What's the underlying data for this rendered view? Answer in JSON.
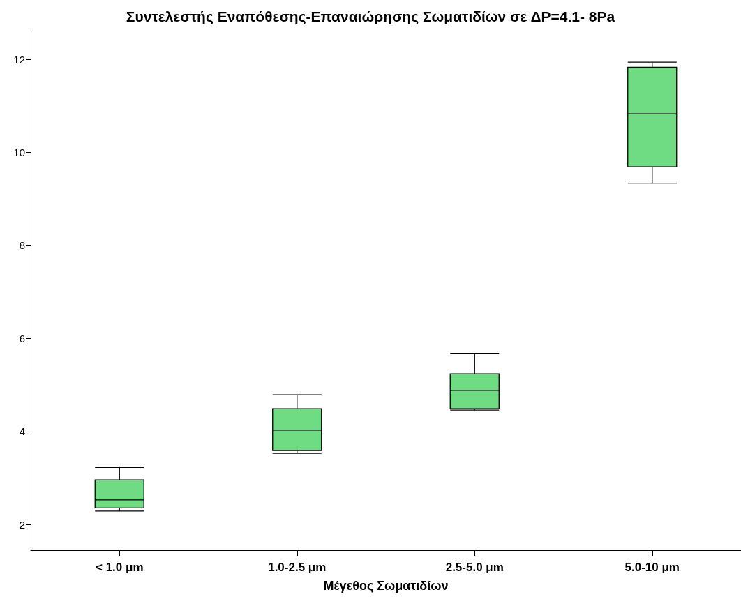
{
  "chart_data": {
    "type": "box",
    "title": "Συντελεστής Εναπόθεσης-Επαναιώρησης Σωματιδίων σε ΔP=4.1- 8Pa",
    "xlabel": "Μέγεθος Σωματιδίων",
    "categories": [
      "< 1.0 μm",
      "1.0-2.5 μm",
      "2.5-5.0 μm",
      "5.0-10 μm"
    ],
    "color": "#6fdc84",
    "boxes": [
      {
        "low": 2.29,
        "q1": 2.36,
        "median": 2.53,
        "q3": 2.96,
        "high": 3.23
      },
      {
        "low": 3.53,
        "q1": 3.59,
        "median": 4.03,
        "q3": 4.49,
        "high": 4.79
      },
      {
        "low": 4.46,
        "q1": 4.49,
        "median": 4.88,
        "q3": 5.24,
        "high": 5.68
      },
      {
        "low": 9.34,
        "q1": 9.69,
        "median": 10.83,
        "q3": 11.83,
        "high": 11.94
      }
    ],
    "ylim": [
      1.45,
      12.6
    ],
    "yticks": [
      2,
      4,
      6,
      8,
      10,
      12
    ]
  }
}
